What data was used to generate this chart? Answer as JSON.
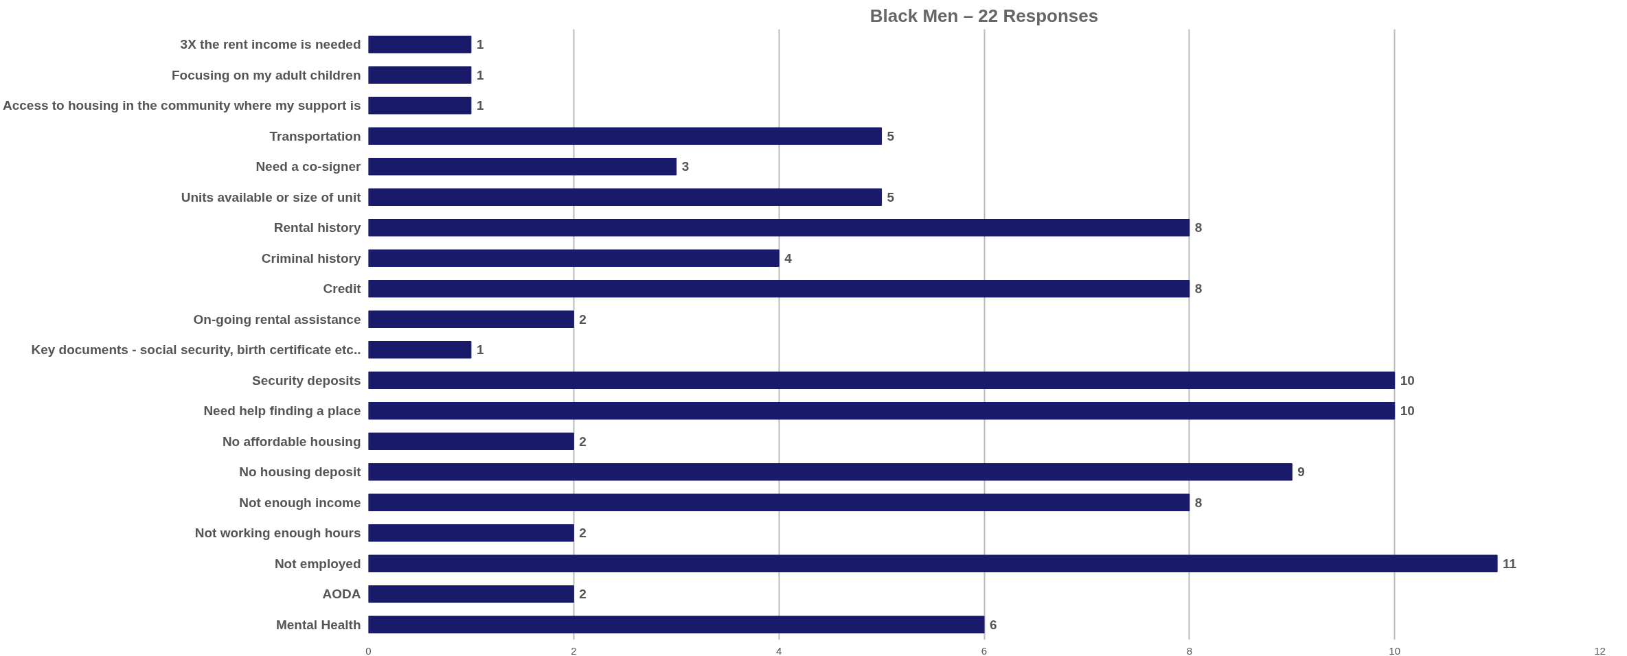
{
  "chart_data": {
    "type": "bar",
    "orientation": "horizontal",
    "title": "Black Men – 22 Responses",
    "categories": [
      "3X the rent income is needed",
      "Focusing on my adult children",
      "Access to housing in the community where my support is",
      "Transportation",
      "Need a co-signer",
      "Units available or size of unit",
      "Rental history",
      "Criminal history",
      "Credit",
      "On-going rental assistance",
      "Key documents - social security, birth certificate etc..",
      "Security deposits",
      "Need help finding a place",
      "No affordable housing",
      "No housing deposit",
      "Not enough income",
      "Not working enough hours",
      "Not employed",
      "AODA",
      "Mental Health"
    ],
    "values": [
      1,
      1,
      1,
      5,
      3,
      5,
      8,
      4,
      8,
      2,
      1,
      10,
      10,
      2,
      9,
      8,
      2,
      11,
      2,
      6
    ],
    "color": "#1a1a6b",
    "xlim": [
      0,
      12
    ],
    "xticks": [
      0,
      2,
      4,
      6,
      8,
      10,
      12
    ],
    "grid": "x",
    "data_labels": true
  }
}
